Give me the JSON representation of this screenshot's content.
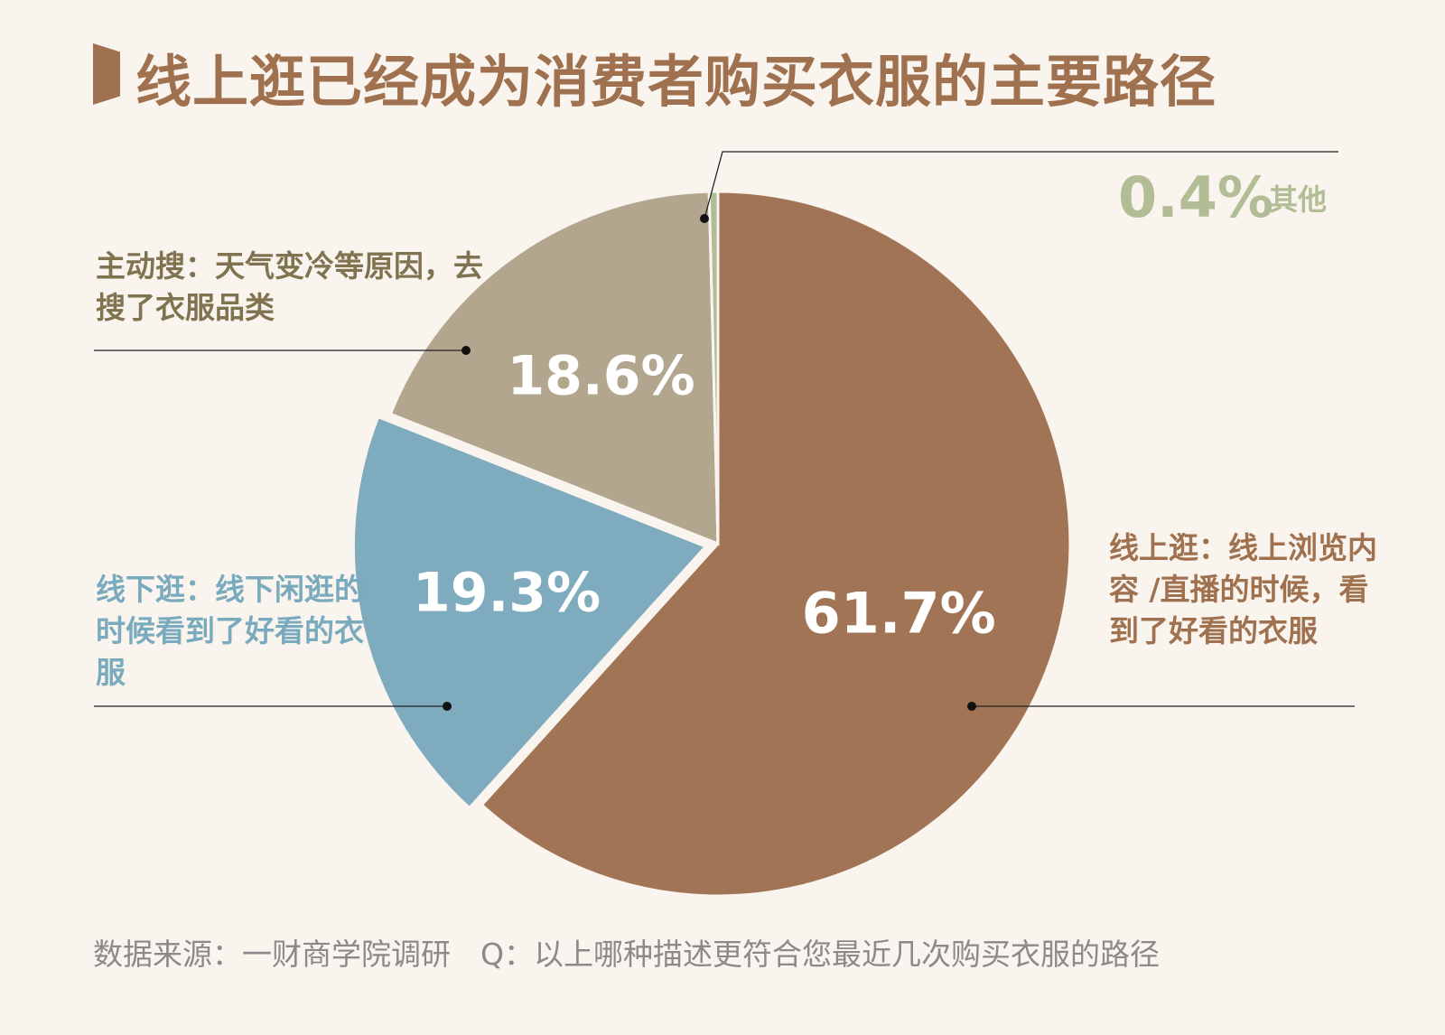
{
  "title": "线上逛已经成为消费者购买衣服的主要路径",
  "footer": "数据来源：一财商学院调研　Q：以上哪种描述更符合您最近几次购买衣服的路径",
  "chart_data": {
    "type": "pie",
    "slices": [
      {
        "label": "线上逛：线上浏览内容 /直播的时候，看到了好看的衣服",
        "value": 61.7,
        "display": "61.7%",
        "color": "#a17456"
      },
      {
        "label": "线下逛：线下闲逛的时候看到了好看的衣服",
        "value": 19.3,
        "display": "19.3%",
        "color": "#7eabbe"
      },
      {
        "label": "主动搜：天气变冷等原因，去搜了衣服品类",
        "value": 18.6,
        "display": "18.6%",
        "color": "#b3a68e"
      },
      {
        "label": "其他",
        "value": 0.4,
        "display": "0.4%",
        "color": "#b3bd95"
      }
    ]
  },
  "labels": {
    "search": "主动搜：天气变冷等原因，去搜了衣服品类",
    "offline": "线下逛：线下闲逛的时候看到了好看的衣服",
    "online": "线上逛：线上浏览内容 /直播的时候，看到了好看的衣服",
    "other_pct": "0.4%",
    "other_name": "其他"
  }
}
